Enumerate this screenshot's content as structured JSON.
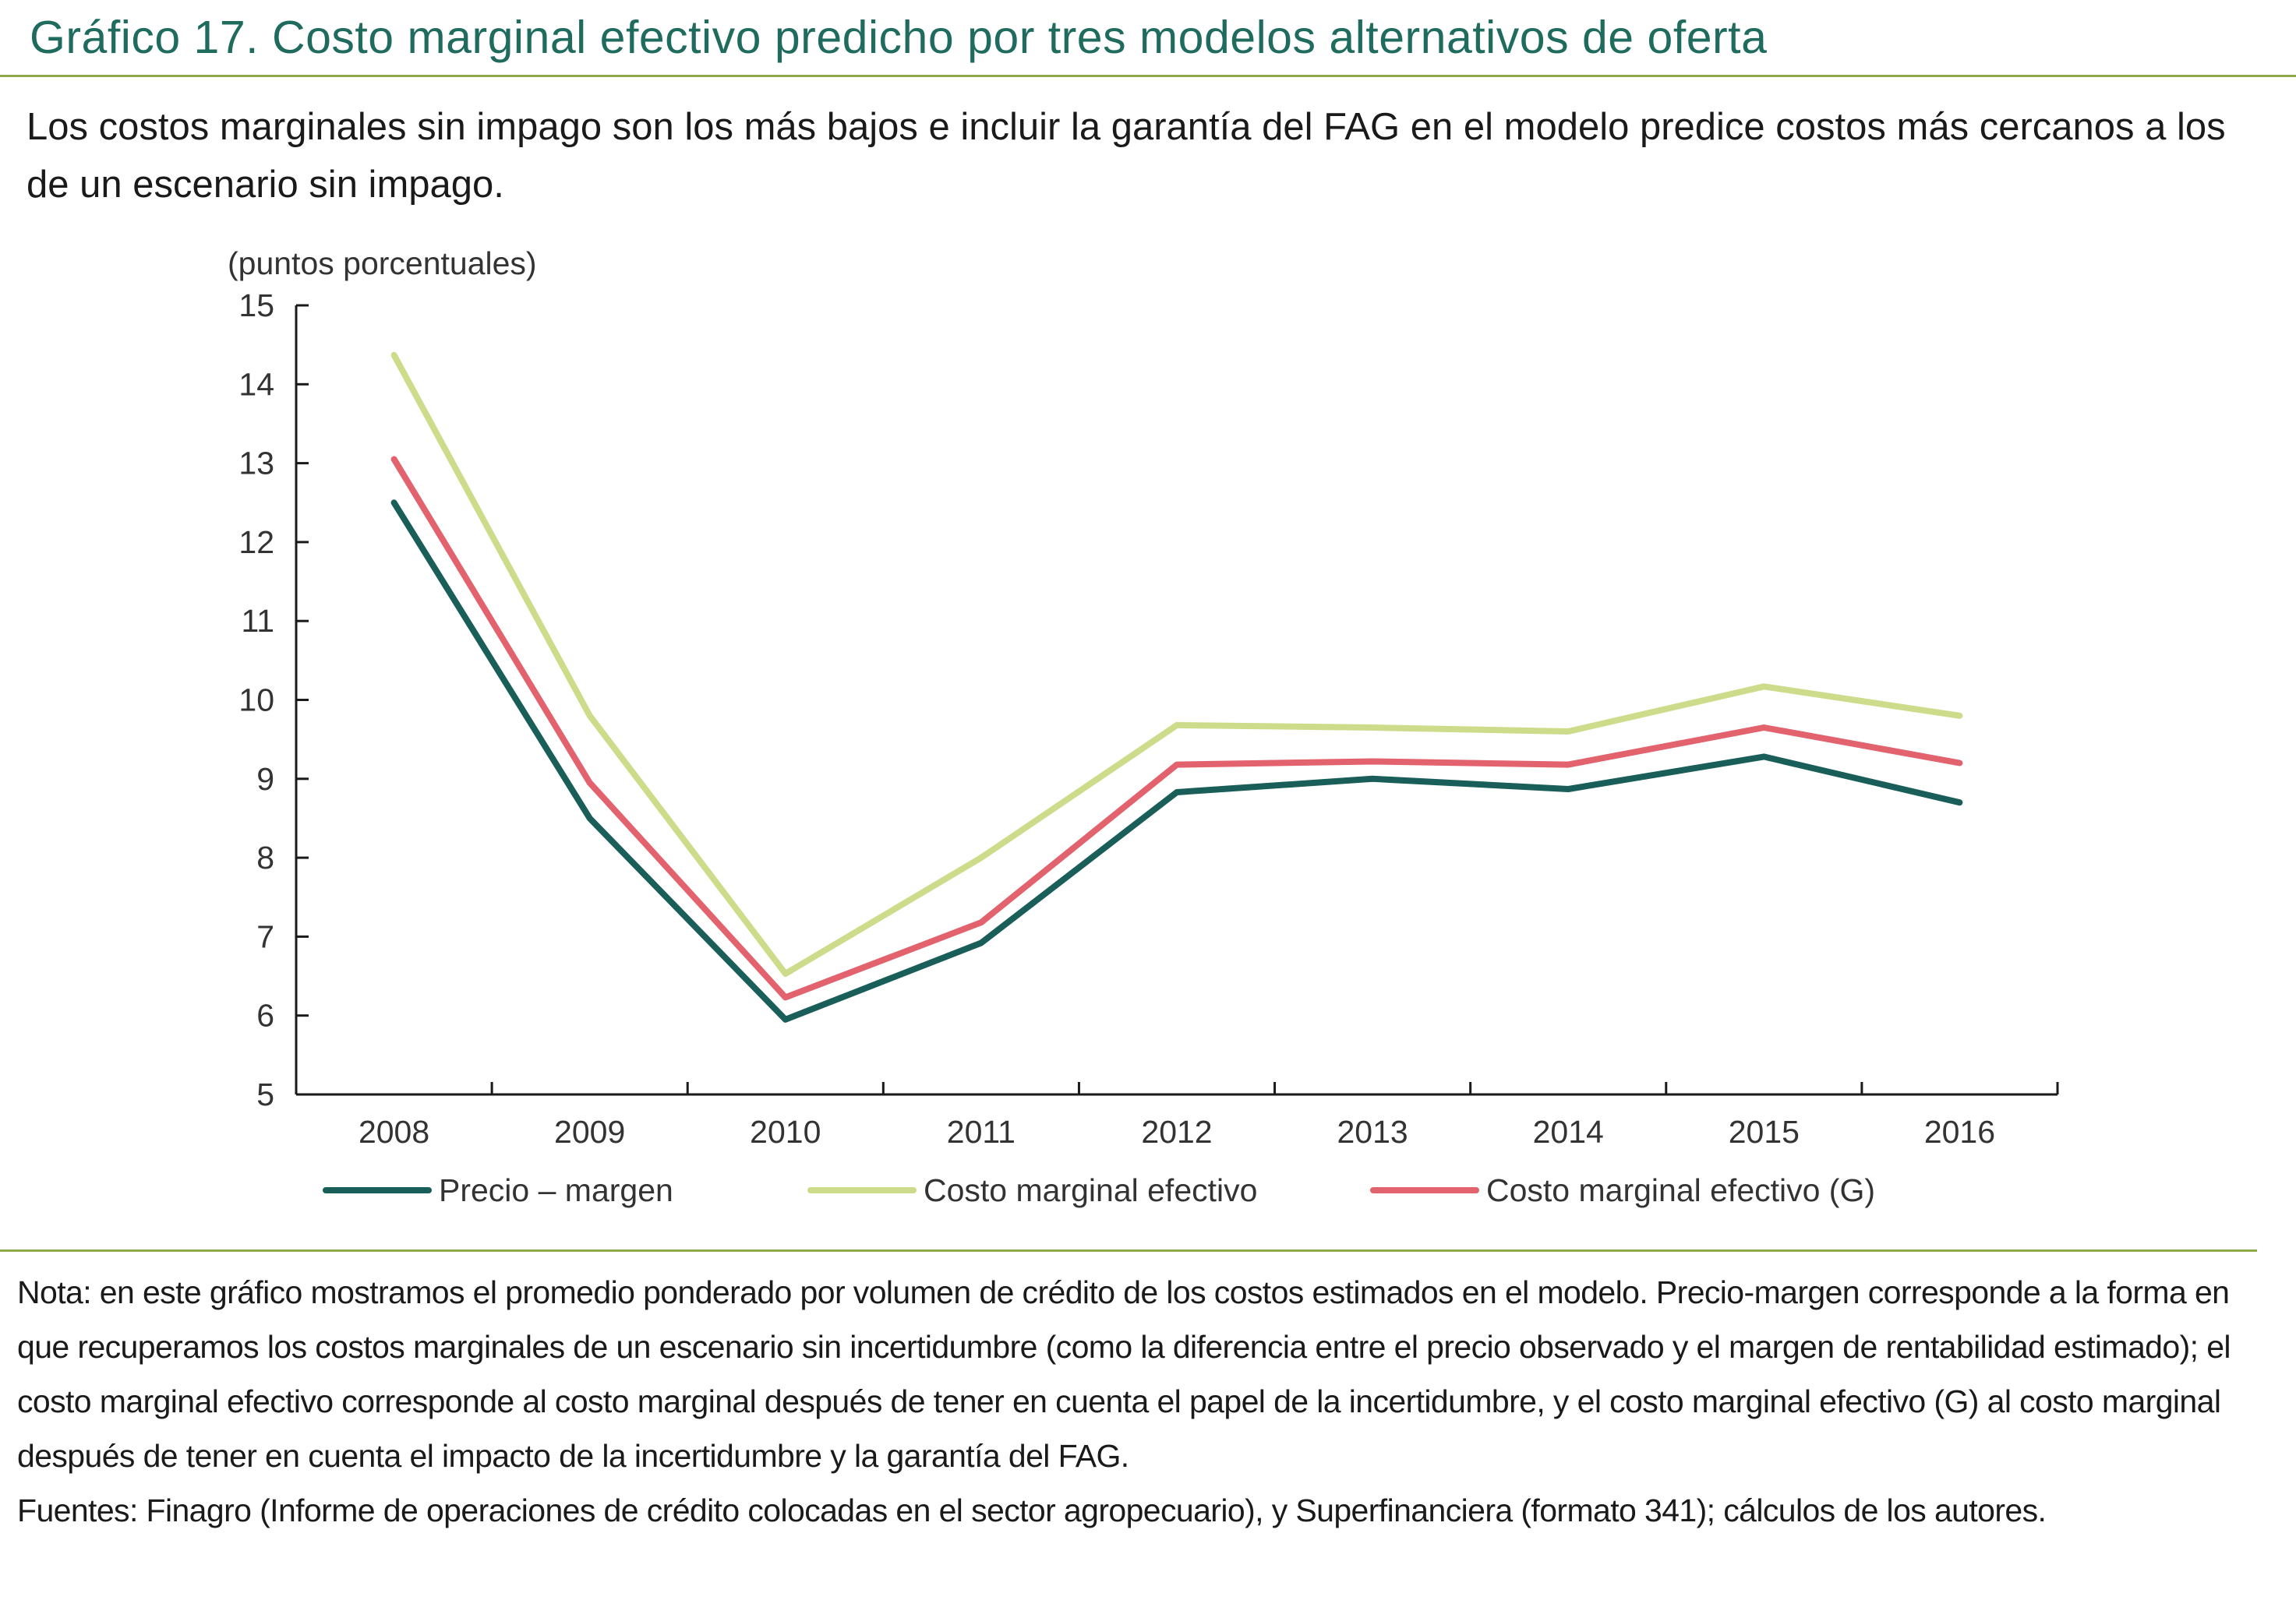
{
  "header": {
    "title": "Gráfico 17. Costo marginal efectivo predicho por tres modelos alternativos de oferta",
    "subtitle": "Los costos marginales sin impago son los más bajos e incluir la garantía del FAG en el modelo predice costos más cercanos a los de un escenario sin impago."
  },
  "chart_data": {
    "type": "line",
    "title": "Costo marginal efectivo predicho por tres modelos alternativos de oferta",
    "ylabel": "(puntos porcentuales)",
    "xlabel": "",
    "ylim": [
      5,
      15
    ],
    "yticks": [
      5,
      6,
      7,
      8,
      9,
      10,
      11,
      12,
      13,
      14,
      15
    ],
    "categories": [
      "2008",
      "2009",
      "2010",
      "2011",
      "2012",
      "2013",
      "2014",
      "2015",
      "2016"
    ],
    "legend_position": "bottom",
    "grid": false,
    "series": [
      {
        "name": "Precio – margen",
        "color": "#1a5e5a",
        "values": [
          12.5,
          8.5,
          5.95,
          6.92,
          8.83,
          9.0,
          8.87,
          9.28,
          8.7
        ]
      },
      {
        "name": "Costo marginal efectivo",
        "color": "#cddc8a",
        "values": [
          14.37,
          9.8,
          6.53,
          8.0,
          9.68,
          9.65,
          9.6,
          10.17,
          9.8
        ]
      },
      {
        "name": "Costo marginal efectivo (G)",
        "color": "#e2626e",
        "values": [
          13.05,
          8.95,
          6.23,
          7.18,
          9.18,
          9.22,
          9.18,
          9.65,
          9.2
        ]
      }
    ]
  },
  "notes": {
    "note": "Nota: en este gráfico mostramos el promedio ponderado por volumen de crédito de los costos estimados en el modelo. Precio-margen corresponde a la forma en que recuperamos los costos marginales de un escenario sin incertidumbre (como la diferencia entre el precio observado y el margen de rentabilidad estimado); el costo marginal efectivo corresponde al costo marginal después de tener en cuenta el papel de la incertidumbre, y el costo marginal efectivo (G) al costo marginal después de tener en cuenta el impacto de la incertidumbre y la garantía del FAG.",
    "sources": "Fuentes: Finagro (Informe de operaciones de crédito colocadas en el sector agropecuario), y Superfinanciera (formato 341); cálculos de los autores."
  }
}
